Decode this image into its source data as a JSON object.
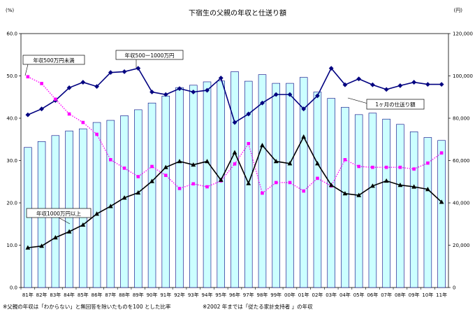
{
  "chart_data": {
    "type": "bar",
    "title": "下宿生の父親の年収と仕送り額",
    "y_left": {
      "unit": "(%)",
      "range": [
        0,
        60
      ],
      "ticks": [
        "0.0",
        "10.0",
        "20.0",
        "30.0",
        "40.0",
        "50.0",
        "60.0"
      ]
    },
    "y_right": {
      "unit": "(円)",
      "range": [
        0,
        120000
      ],
      "ticks": [
        "0",
        "20,000",
        "40,000",
        "60,000",
        "80,000",
        "100,000",
        "120,000"
      ]
    },
    "categories": [
      "81年",
      "82年",
      "83年",
      "84年",
      "85年",
      "86年",
      "87年",
      "88年",
      "89年",
      "90年",
      "91年",
      "92年",
      "93年",
      "94年",
      "95年",
      "96年",
      "97年",
      "98年",
      "99年",
      "00年",
      "01年",
      "02年",
      "03年",
      "04年",
      "05年",
      "06年",
      "07年",
      "08年",
      "09年",
      "10年",
      "11年"
    ],
    "grid": false,
    "series": [
      {
        "name": "1ヶ月の仕送り額",
        "kind": "bar",
        "axis": "right",
        "color": "#ccffff",
        "values": [
          66200,
          69000,
          71800,
          74000,
          75000,
          78000,
          79000,
          81200,
          84000,
          87200,
          90500,
          94500,
          95600,
          97200,
          97600,
          102000,
          97500,
          100600,
          96500,
          96500,
          99300,
          92400,
          89400,
          85200,
          81700,
          82400,
          79600,
          77100,
          73600,
          70900,
          69500
        ]
      },
      {
        "name": "年収500〜1000万円",
        "kind": "line",
        "axis": "left",
        "marker": "diamond",
        "color": "#000080",
        "values": [
          40.8,
          42.2,
          44.2,
          47.2,
          48.5,
          47.5,
          50.8,
          51.0,
          51.8,
          46.2,
          45.6,
          47.0,
          46.2,
          46.6,
          49.5,
          39.0,
          41.0,
          43.6,
          45.6,
          45.6,
          42.2,
          45.3,
          51.8,
          47.9,
          49.3,
          47.9,
          46.8,
          47.7,
          48.5,
          48.0,
          48.0
        ]
      },
      {
        "name": "年収500万円未満",
        "kind": "line",
        "axis": "left",
        "marker": "square",
        "color": "#ff00ff",
        "values": [
          49.8,
          48.2,
          44.5,
          41.0,
          39.0,
          36.2,
          30.2,
          28.2,
          26.2,
          28.6,
          26.5,
          23.4,
          24.5,
          23.8,
          25.2,
          29.2,
          34.0,
          22.3,
          24.8,
          24.8,
          22.8,
          25.8,
          24.0,
          30.2,
          28.6,
          28.4,
          28.4,
          28.4,
          28.0,
          29.4,
          31.8
        ]
      },
      {
        "name": "年収1000万円以上",
        "kind": "line",
        "axis": "left",
        "marker": "triangle",
        "color": "#000000",
        "values": [
          9.4,
          9.8,
          11.8,
          13.2,
          14.8,
          17.4,
          19.2,
          21.2,
          22.4,
          25.1,
          28.4,
          29.8,
          29.0,
          29.8,
          25.4,
          31.9,
          24.6,
          33.6,
          29.8,
          29.3,
          35.6,
          29.3,
          24.2,
          22.2,
          21.8,
          24.0,
          25.2,
          24.2,
          23.8,
          23.2,
          20.2
        ]
      }
    ],
    "annotations": {
      "callout_low": "年収500万円未満",
      "callout_mid": "年収500ー1000万円",
      "callout_high": "年収1000万円以上",
      "callout_bar": "1ヶ月の仕送り額"
    },
    "footnotes": [
      "※父親の年収は「わからない」と無回答を除いたものを100 とした比率",
      "※2002 年までは「従たる家計支持者 」の年収"
    ]
  }
}
